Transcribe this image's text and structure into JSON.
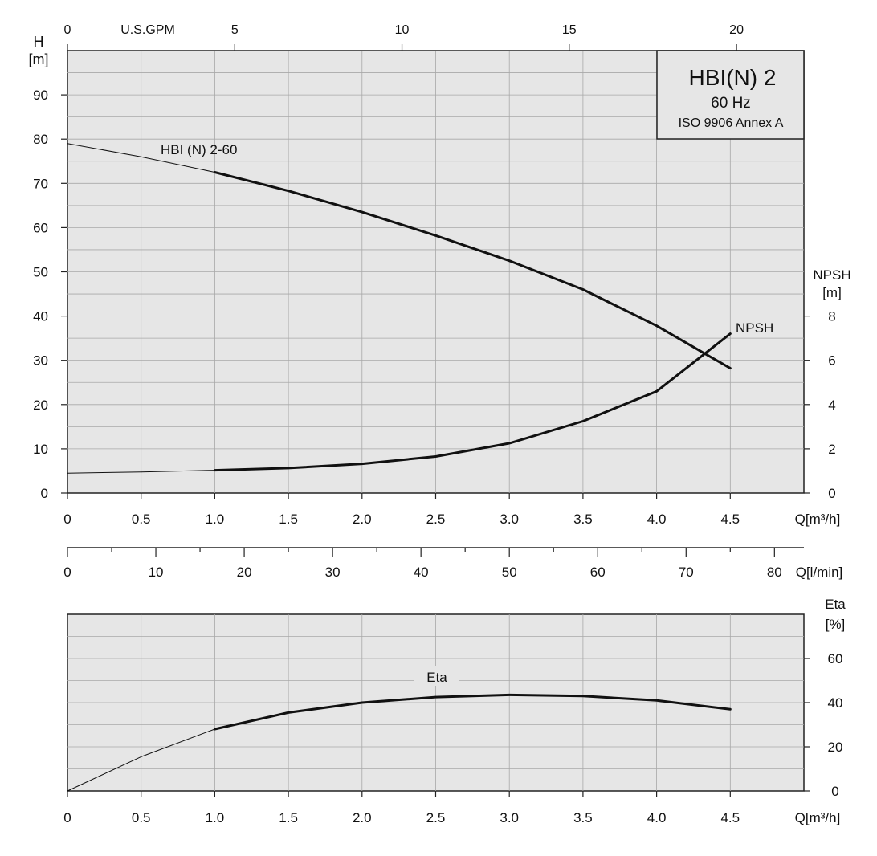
{
  "title_box": {
    "line1": "HBI(N) 2",
    "line2": "60 Hz",
    "line3": "ISO 9906 Annex A"
  },
  "chart_data": [
    {
      "type": "line",
      "name": "head-npsh-chart",
      "xlabel": "Q[m³/h]",
      "xlim": [
        0,
        5
      ],
      "xticks": [
        "0",
        "0.5",
        "1.0",
        "1.5",
        "2.0",
        "2.5",
        "3.0",
        "3.5",
        "4.0",
        "4.5"
      ],
      "y_left": {
        "unit_line1": "H",
        "unit_line2": "[m]",
        "ylim": [
          0,
          100
        ],
        "ticks": [
          "0",
          "10",
          "20",
          "30",
          "40",
          "50",
          "60",
          "70",
          "80",
          "90"
        ]
      },
      "y_right": {
        "unit_line1": "NPSH",
        "unit_line2": "[m]",
        "ylim": [
          0,
          20
        ],
        "ticks": [
          "0",
          "2",
          "4",
          "6",
          "8"
        ]
      },
      "top_axis": {
        "label": "U.S.GPM",
        "ticks": [
          "0",
          "5",
          "10",
          "15",
          "20"
        ]
      },
      "secondary_axis": {
        "label": "Q[l/min]",
        "ticks": [
          "0",
          "10",
          "20",
          "30",
          "40",
          "50",
          "60",
          "70",
          "80"
        ]
      },
      "grid": true,
      "series": [
        {
          "name": "HBI (N) 2-60",
          "axis": "left",
          "x": [
            0,
            0.5,
            1.0,
            1.5,
            2.0,
            2.5,
            3.0,
            3.5,
            4.0,
            4.5
          ],
          "y": [
            79.0,
            76.0,
            72.5,
            68.3,
            63.5,
            58.2,
            52.5,
            46.0,
            37.8,
            28.2
          ],
          "solid_from": 1.0
        },
        {
          "name": "NPSH",
          "axis": "right",
          "x": [
            0,
            0.5,
            1.0,
            1.5,
            2.0,
            2.5,
            3.0,
            3.5,
            4.0,
            4.5
          ],
          "y": [
            0.9,
            0.95,
            1.03,
            1.13,
            1.32,
            1.65,
            2.25,
            3.25,
            4.6,
            7.2
          ],
          "solid_from": 1.0
        }
      ]
    },
    {
      "type": "line",
      "name": "efficiency-chart",
      "xlabel": "Q[m³/h]",
      "xlim": [
        0,
        5
      ],
      "xticks": [
        "0",
        "0.5",
        "1.0",
        "1.5",
        "2.0",
        "2.5",
        "3.0",
        "3.5",
        "4.0",
        "4.5"
      ],
      "y_right": {
        "unit_line1": "Eta",
        "unit_line2": "[%]",
        "ylim": [
          0,
          80
        ],
        "ticks": [
          "0",
          "20",
          "40",
          "60"
        ]
      },
      "grid": true,
      "series": [
        {
          "name": "Eta",
          "axis": "right",
          "x": [
            0,
            0.5,
            1.0,
            1.5,
            2.0,
            2.5,
            3.0,
            3.5,
            4.0,
            4.5
          ],
          "y": [
            0,
            15.5,
            28.0,
            35.5,
            40.0,
            42.5,
            43.5,
            43.0,
            41.0,
            37.0
          ],
          "solid_from": 1.0
        }
      ]
    }
  ]
}
